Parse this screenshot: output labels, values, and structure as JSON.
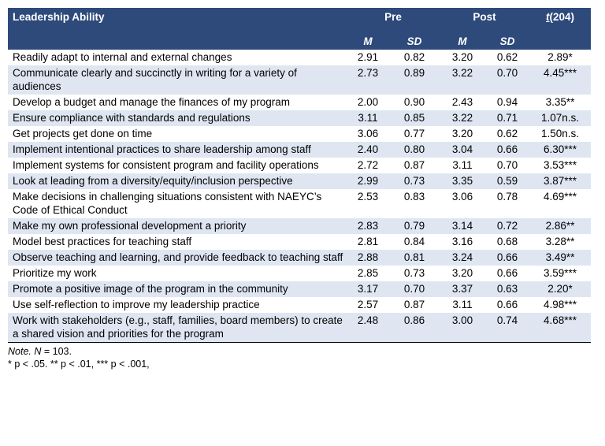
{
  "header": {
    "col_label": "Leadership Ability",
    "pre": "Pre",
    "post": "Post",
    "t_prefix": "t",
    "t_suffix": "(204)",
    "m": "M",
    "sd": "SD"
  },
  "rows": [
    {
      "label": "Readily adapt to internal and external changes",
      "pre_m": "2.91",
      "pre_sd": "0.82",
      "post_m": "3.20",
      "post_sd": "0.62",
      "t": "2.89*"
    },
    {
      "label": "Communicate clearly and succinctly in writing for a variety of audiences",
      "pre_m": "2.73",
      "pre_sd": "0.89",
      "post_m": "3.22",
      "post_sd": "0.70",
      "t": "4.45***"
    },
    {
      "label": "Develop a budget and manage the finances of my program",
      "pre_m": "2.00",
      "pre_sd": "0.90",
      "post_m": "2.43",
      "post_sd": "0.94",
      "t": "3.35**"
    },
    {
      "label": "Ensure compliance with standards and regulations",
      "pre_m": "3.11",
      "pre_sd": "0.85",
      "post_m": "3.22",
      "post_sd": "0.71",
      "t": "1.07n.s."
    },
    {
      "label": "Get projects get done on time",
      "pre_m": "3.06",
      "pre_sd": "0.77",
      "post_m": "3.20",
      "post_sd": "0.62",
      "t": "1.50n.s."
    },
    {
      "label": "Implement intentional practices to share leadership among staff",
      "pre_m": "2.40",
      "pre_sd": "0.80",
      "post_m": "3.04",
      "post_sd": "0.66",
      "t": "6.30***"
    },
    {
      "label": "Implement systems for consistent program and facility operations",
      "pre_m": "2.72",
      "pre_sd": "0.87",
      "post_m": "3.11",
      "post_sd": "0.70",
      "t": "3.53***"
    },
    {
      "label": "Look at leading from a diversity/equity/inclusion perspective",
      "pre_m": "2.99",
      "pre_sd": "0.73",
      "post_m": "3.35",
      "post_sd": "0.59",
      "t": "3.87***"
    },
    {
      "label": "Make decisions in challenging situations consistent with NAEYC’s Code of Ethical Conduct",
      "pre_m": "2.53",
      "pre_sd": "0.83",
      "post_m": "3.06",
      "post_sd": "0.78",
      "t": "4.69***"
    },
    {
      "label": "Make my own professional development a priority",
      "pre_m": "2.83",
      "pre_sd": "0.79",
      "post_m": "3.14",
      "post_sd": "0.72",
      "t": "2.86**"
    },
    {
      "label": "Model best practices for teaching staff",
      "pre_m": "2.81",
      "pre_sd": "0.84",
      "post_m": "3.16",
      "post_sd": "0.68",
      "t": "3.28**"
    },
    {
      "label": "Observe teaching and learning, and provide feedback to teaching staff",
      "pre_m": "2.88",
      "pre_sd": "0.81",
      "post_m": "3.24",
      "post_sd": "0.66",
      "t": "3.49**"
    },
    {
      "label": "Prioritize my work",
      "pre_m": "2.85",
      "pre_sd": "0.73",
      "post_m": "3.20",
      "post_sd": "0.66",
      "t": "3.59***"
    },
    {
      "label": "Promote a positive image of the program in the community",
      "pre_m": "3.17",
      "pre_sd": "0.70",
      "post_m": "3.37",
      "post_sd": "0.63",
      "t": "2.20*"
    },
    {
      "label": "Use self-reflection to improve my leadership practice",
      "pre_m": "2.57",
      "pre_sd": "0.87",
      "post_m": "3.11",
      "post_sd": "0.66",
      "t": "4.98***"
    },
    {
      "label": "Work with stakeholders (e.g., staff, families, board members) to create a shared vision and priorities for the program",
      "pre_m": "2.48",
      "pre_sd": "0.86",
      "post_m": "3.00",
      "post_sd": "0.74",
      "t": "4.68***"
    }
  ],
  "note": {
    "note_label": "Note.",
    "n_label": "N",
    "n_text": " = 103.",
    "sig_text": "* p < .05. ** p < .01, *** p < .001,"
  },
  "colors": {
    "header_bg": "#2d4a7a",
    "alt_row_bg": "#dfe6f2"
  }
}
